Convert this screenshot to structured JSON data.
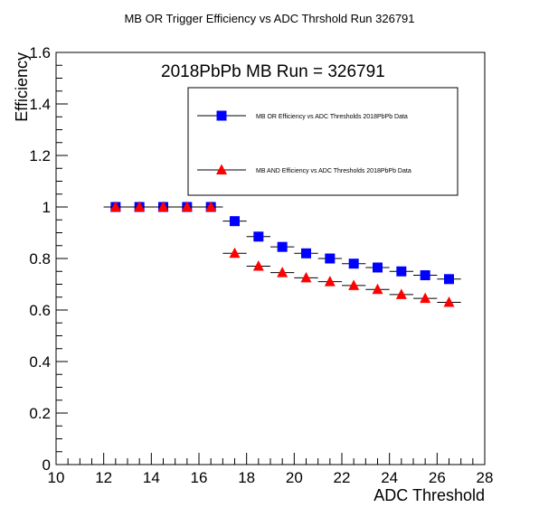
{
  "chart_data": {
    "type": "scatter",
    "title": "MB OR Trigger Efficiency vs ADC Thrshold Run 326791",
    "annotation": "2018PbPb MB Run = 326791",
    "xlabel": "ADC Threshold",
    "ylabel": "Efficiency",
    "xlim": [
      10,
      28
    ],
    "ylim": [
      0,
      1.6
    ],
    "x_ticks": [
      "10",
      "12",
      "14",
      "16",
      "18",
      "20",
      "22",
      "24",
      "26",
      "28"
    ],
    "y_ticks": [
      "0",
      "0.2",
      "0.4",
      "0.6",
      "0.8",
      "1",
      "1.2",
      "1.4",
      "1.6"
    ],
    "x_error": 0.5,
    "grid": false,
    "legend_position": "top-right",
    "series": [
      {
        "name": "MB OR Efficiency vs ADC Thresholds 2018PbPb Data",
        "marker": "square",
        "color": "#0000ff",
        "x": [
          12.5,
          13.5,
          14.5,
          15.5,
          16.5,
          17.5,
          18.5,
          19.5,
          20.5,
          21.5,
          22.5,
          23.5,
          24.5,
          25.5,
          26.5
        ],
        "y": [
          1.0,
          1.0,
          1.0,
          1.0,
          1.0,
          0.945,
          0.885,
          0.845,
          0.82,
          0.8,
          0.78,
          0.765,
          0.75,
          0.735,
          0.72
        ]
      },
      {
        "name": "MB AND Efficiency vs ADC Thresholds 2018PbPb Data",
        "marker": "triangle",
        "color": "#ff0000",
        "x": [
          12.5,
          13.5,
          14.5,
          15.5,
          16.5,
          17.5,
          18.5,
          19.5,
          20.5,
          21.5,
          22.5,
          23.5,
          24.5,
          25.5,
          26.5
        ],
        "y": [
          1.0,
          1.0,
          1.0,
          1.0,
          1.0,
          0.82,
          0.77,
          0.745,
          0.725,
          0.71,
          0.695,
          0.68,
          0.66,
          0.645,
          0.63
        ]
      }
    ]
  }
}
